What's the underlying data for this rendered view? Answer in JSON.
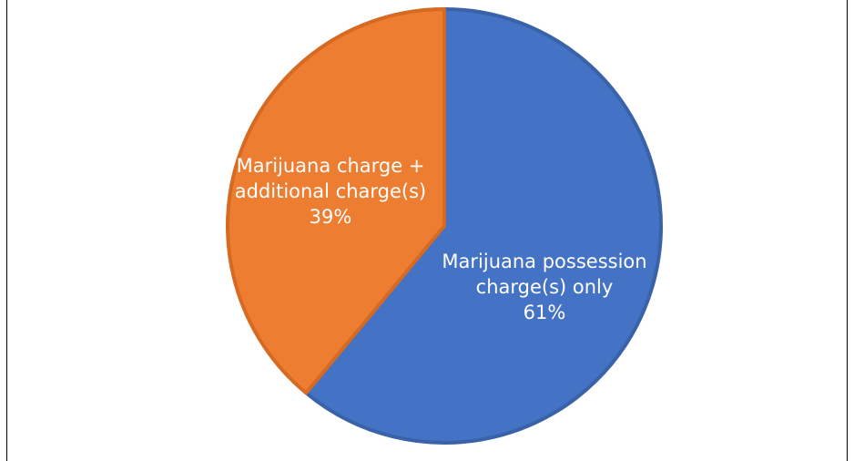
{
  "chart_data": {
    "type": "pie",
    "title": "",
    "slices": [
      {
        "lines": [
          "Marijuana possession",
          "charge(s) only",
          "61%"
        ],
        "value": 61,
        "color": "#4472C4",
        "border": "#3A62A8"
      },
      {
        "lines": [
          "Marijuana charge +",
          "additional charge(s)",
          "39%"
        ],
        "value": 39,
        "color": "#ED7D31",
        "border": "#D66A22"
      }
    ],
    "start_angle_deg": 0,
    "direction": "clockwise"
  }
}
